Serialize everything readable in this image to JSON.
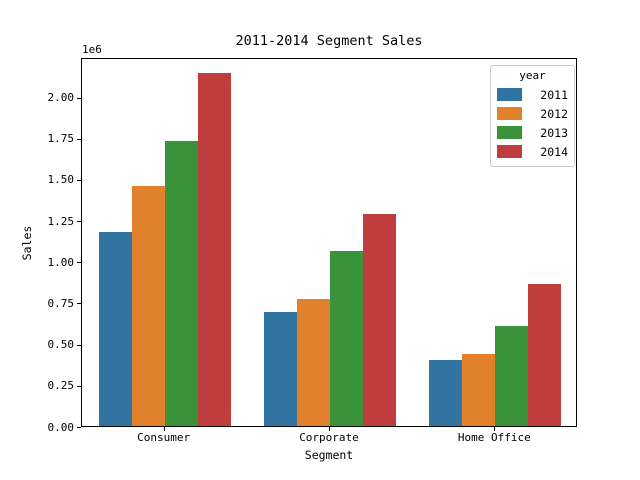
{
  "chart_data": {
    "type": "bar",
    "title": "2011-2014 Segment Sales",
    "xlabel": "Segment",
    "ylabel": "Sales",
    "y_offset_label": "1e6",
    "categories": [
      "Consumer",
      "Corporate",
      "Home Office"
    ],
    "series": [
      {
        "name": "2011",
        "color": "#3274a1",
        "values": [
          1180000,
          690000,
          400000
        ]
      },
      {
        "name": "2012",
        "color": "#e1812c",
        "values": [
          1460000,
          770000,
          440000
        ]
      },
      {
        "name": "2013",
        "color": "#3a923a",
        "values": [
          1730000,
          1060000,
          610000
        ]
      },
      {
        "name": "2014",
        "color": "#c03d3e",
        "values": [
          2140000,
          1290000,
          860000
        ]
      }
    ],
    "legend": {
      "title": "year",
      "position": "upper right"
    },
    "ylim": [
      0,
      2240000
    ],
    "yticks": [
      0,
      250000,
      500000,
      750000,
      1000000,
      1250000,
      1500000,
      1750000,
      2000000
    ],
    "ytick_labels": [
      "0.00",
      "0.25",
      "0.50",
      "0.75",
      "1.00",
      "1.25",
      "1.50",
      "1.75",
      "2.00"
    ],
    "grid": false,
    "background_color": "#ffffff",
    "spine_color": "#000000"
  }
}
